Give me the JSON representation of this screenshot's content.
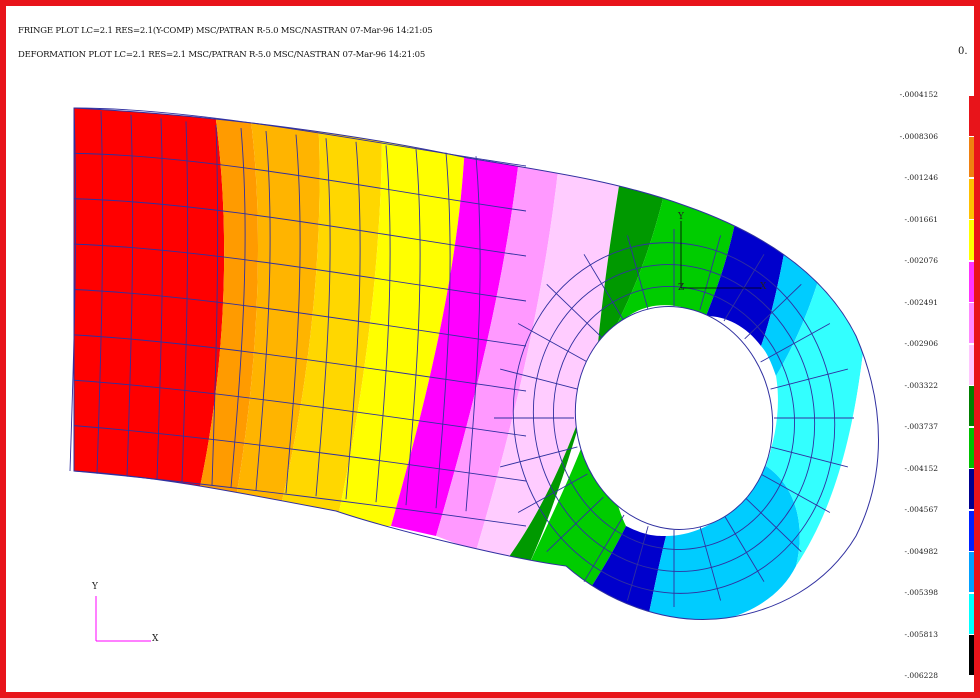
{
  "header": {
    "fringe_line": "FRINGE PLOT  LC=2.1 RES=2.1(Y-COMP) MSC/PATRAN R-5.0 MSC/NASTRAN 07-Mar-96 14:21:05",
    "deformation_line": "DEFORMATION PLOT  LC=2.1 RES=2.1 MSC/PATRAN R-5.0 MSC/NASTRAN 07-Mar-96 14:21:05"
  },
  "legend": {
    "zero_label": "0.",
    "labels": [
      "-.0004152",
      "-.0008306",
      "-.001246",
      "-.001661",
      "-.002076",
      "-.002491",
      "-.002906",
      "-.003322",
      "-.003737",
      "-.004152",
      "-.004567",
      "-.004982",
      "-.005398",
      "-.005813",
      "-.006228"
    ],
    "colors": [
      "#ffffff",
      "#e8141a",
      "#f08010",
      "#ffc000",
      "#ffff00",
      "#ff33ff",
      "#ff88ff",
      "#ffc8ff",
      "#008000",
      "#00c000",
      "#000090",
      "#0020ff",
      "#00a0ff",
      "#00ffff",
      "#000000"
    ]
  },
  "bands": [
    {
      "name": "red",
      "color": "#ff0000"
    },
    {
      "name": "orange-1",
      "color": "#ff9b00"
    },
    {
      "name": "orange-2",
      "color": "#ffb400"
    },
    {
      "name": "yellow-1",
      "color": "#ffd700"
    },
    {
      "name": "yellow-2",
      "color": "#ffff00"
    },
    {
      "name": "magenta-1",
      "color": "#ff00ff"
    },
    {
      "name": "magenta-2",
      "color": "#ff99ff"
    },
    {
      "name": "pink",
      "color": "#ffccff"
    },
    {
      "name": "green-1",
      "color": "#009900"
    },
    {
      "name": "green-2",
      "color": "#00cc00"
    },
    {
      "name": "dark-blue",
      "color": "#0000cc"
    },
    {
      "name": "light-blue",
      "color": "#00ccff"
    },
    {
      "name": "cyan",
      "color": "#33ffff"
    }
  ],
  "mesh_color": "#3030a0",
  "triad_main": {
    "y": "Y",
    "x": "X",
    "z": "Z"
  },
  "triad_small": {
    "y": "Y",
    "x": "X"
  }
}
